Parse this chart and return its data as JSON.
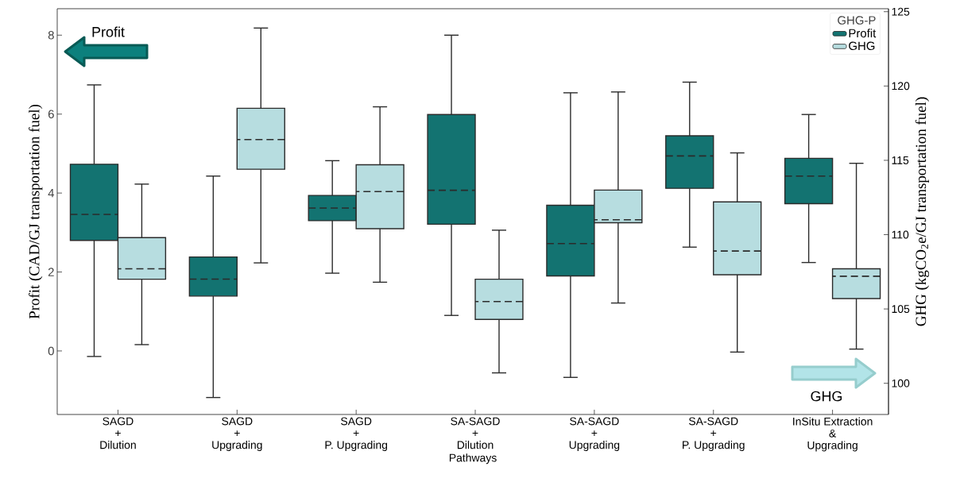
{
  "chart_data": {
    "type": "box",
    "categories": [
      "SAGD\n+\nDilution",
      "SAGD\n+\nUpgrading",
      "SAGD\n+\nP. Upgrading",
      "SA-SAGD\n+\nDilution",
      "SA-SAGD\n+\nUpgrading",
      "SA-SAGD\n+\nP. Upgrading",
      "InSitu Extraction\n&\nUpgrading"
    ],
    "xlabel": "Pathways",
    "ylabel": "Profit (CAD/GJ transportation fuel)",
    "y2label": "GHG (kgCO$_{2}$e/GJ transportation fuel)",
    "legend_title": "GHG-P",
    "legend": "top right",
    "annotations": [
      "Profit",
      "GHG"
    ],
    "ylim": [
      -1.61,
      8.67
    ],
    "yticks": [
      0,
      2,
      4,
      6,
      8
    ],
    "y2lim": [
      97.9,
      125.2
    ],
    "y2ticks": [
      100,
      105,
      110,
      115,
      120,
      125
    ],
    "series": [
      {
        "name": "Profit",
        "color": "#137371",
        "boxes": [
          {
            "low": -0.14,
            "q1": 2.8,
            "median": 3.46,
            "q3": 4.73,
            "high": 6.74
          },
          {
            "low": -1.18,
            "q1": 1.39,
            "median": 1.82,
            "q3": 2.38,
            "high": 4.43
          },
          {
            "low": 1.97,
            "q1": 3.3,
            "median": 3.62,
            "q3": 3.94,
            "high": 4.82
          },
          {
            "low": 0.9,
            "q1": 3.21,
            "median": 4.07,
            "q3": 5.99,
            "high": 8.0
          },
          {
            "low": -0.67,
            "q1": 1.9,
            "median": 2.72,
            "q3": 3.69,
            "high": 6.54
          },
          {
            "low": 2.63,
            "q1": 4.12,
            "median": 4.94,
            "q3": 5.45,
            "high": 6.81
          },
          {
            "low": 2.24,
            "q1": 3.73,
            "median": 4.43,
            "q3": 4.88,
            "high": 5.99
          }
        ]
      },
      {
        "name": "GHG",
        "color": "#b7dde0",
        "axis": "y2",
        "boxes": [
          {
            "low": 102.6,
            "q1": 107.0,
            "median": 107.7,
            "q3": 109.8,
            "high": 113.4
          },
          {
            "low": 108.1,
            "q1": 114.4,
            "median": 116.4,
            "q3": 118.5,
            "high": 123.9
          },
          {
            "low": 106.8,
            "q1": 110.4,
            "median": 112.9,
            "q3": 114.7,
            "high": 118.6
          },
          {
            "low": 100.7,
            "q1": 104.3,
            "median": 105.5,
            "q3": 107.0,
            "high": 110.3
          },
          {
            "low": 105.4,
            "q1": 110.8,
            "median": 111.0,
            "q3": 113.0,
            "high": 119.6
          },
          {
            "low": 102.1,
            "q1": 107.3,
            "median": 108.9,
            "q3": 112.2,
            "high": 115.5
          },
          {
            "low": 102.3,
            "q1": 105.7,
            "median": 107.2,
            "q3": 107.7,
            "high": 114.8
          }
        ]
      }
    ]
  }
}
